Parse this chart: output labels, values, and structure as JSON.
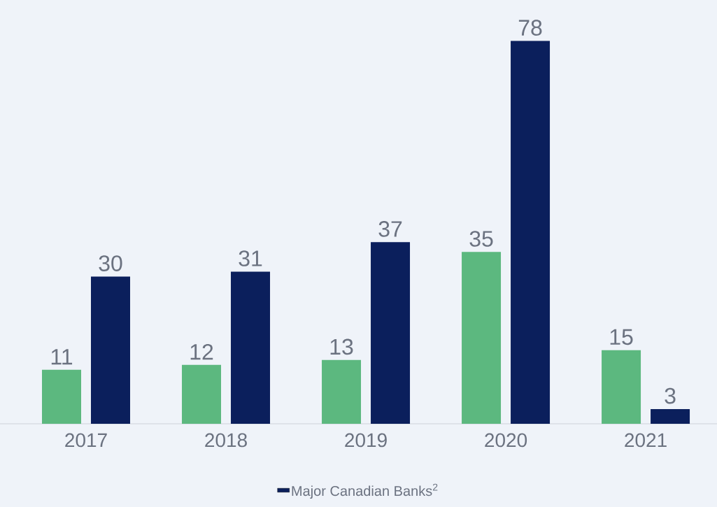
{
  "chart_data": {
    "type": "bar",
    "categories": [
      "2017",
      "2018",
      "2019",
      "2020",
      "2021"
    ],
    "series": [
      {
        "color": "#5cb87f",
        "values": [
          11,
          12,
          13,
          35,
          15
        ]
      },
      {
        "name": "Major Canadian Banks$^{2}$",
        "color": "#0b1f5c",
        "values": [
          30,
          31,
          37,
          78,
          3
        ]
      }
    ],
    "data_labels": true,
    "legend": "bottom"
  }
}
